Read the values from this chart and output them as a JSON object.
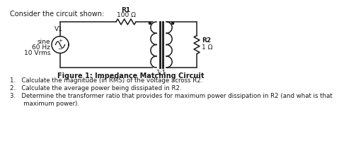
{
  "title": "Consider the circuit shown:",
  "figure_label": "Figure 1: Impedance Matching Circuit",
  "q1": "1.   Calculate the magnitude (in RMS) of the voltage across R2.",
  "q2": "2.   Calculate the average power being dissipated in R2.",
  "q3a": "3.   Determine the transformer ratio that provides for maximum power dissipation in R2 (and what is that",
  "q3b": "       maximum power).",
  "R1_label": "R1",
  "R1_val": "100 Ω",
  "R2_label": "R2",
  "R2_val": "1 Ω",
  "V1_line1": "V1",
  "V1_line2": "sine",
  "V1_line3": "60 Hz",
  "V1_line4": "10 Vrms",
  "transformer_label": "1:1",
  "bg_color": "#ffffff",
  "line_color": "#1a1a1a"
}
